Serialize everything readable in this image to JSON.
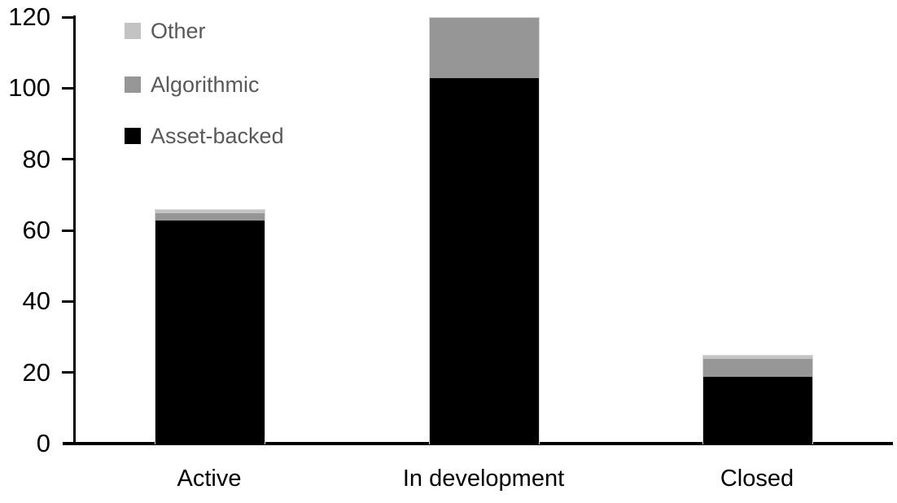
{
  "chart_data": {
    "type": "bar",
    "stacked": true,
    "title": "",
    "xlabel": "",
    "ylabel": "",
    "categories": [
      "Active",
      "In development",
      "Closed"
    ],
    "series": [
      {
        "name": "Other",
        "color": "#c3c3c3",
        "values": [
          1,
          0,
          1
        ]
      },
      {
        "name": "Algorithmic",
        "color": "#969696",
        "values": [
          2,
          17,
          5
        ]
      },
      {
        "name": "Asset-backed",
        "color": "#000000",
        "values": [
          63,
          103,
          19
        ]
      }
    ],
    "totals": [
      66,
      120,
      25
    ],
    "ylim": [
      0,
      120
    ],
    "yticks": [
      0,
      20,
      40,
      60,
      80,
      100,
      120
    ],
    "grid": false,
    "legend_position": "top-left",
    "axis_color": "#000000",
    "label_color": "#000000",
    "legend_text_color": "#595959",
    "background_color": "#ffffff"
  }
}
